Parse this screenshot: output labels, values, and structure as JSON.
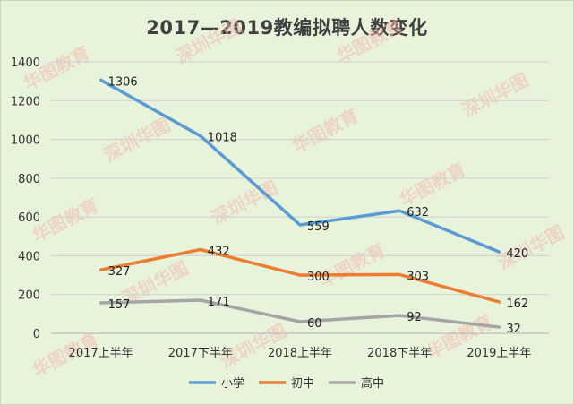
{
  "chart_data": {
    "type": "line",
    "title": "2017—2019教编拟聘人数变化",
    "categories": [
      "2017上半年",
      "2017下半年",
      "2018上半年",
      "2018下半年",
      "2019上半年"
    ],
    "series": [
      {
        "name": "小学",
        "color": "#5b9bd5",
        "values": [
          1306,
          1018,
          559,
          632,
          420
        ]
      },
      {
        "name": "初中",
        "color": "#ed7d31",
        "values": [
          327,
          432,
          300,
          303,
          162
        ]
      },
      {
        "name": "高中",
        "color": "#a5a5a5",
        "values": [
          157,
          171,
          60,
          92,
          32
        ]
      }
    ],
    "ylim": [
      0,
      1400
    ],
    "yticks": [
      0,
      200,
      400,
      600,
      800,
      1000,
      1200,
      1400
    ],
    "grid": true,
    "legend": "bottom",
    "watermark_text": [
      "华图教育",
      "深圳华图"
    ]
  }
}
